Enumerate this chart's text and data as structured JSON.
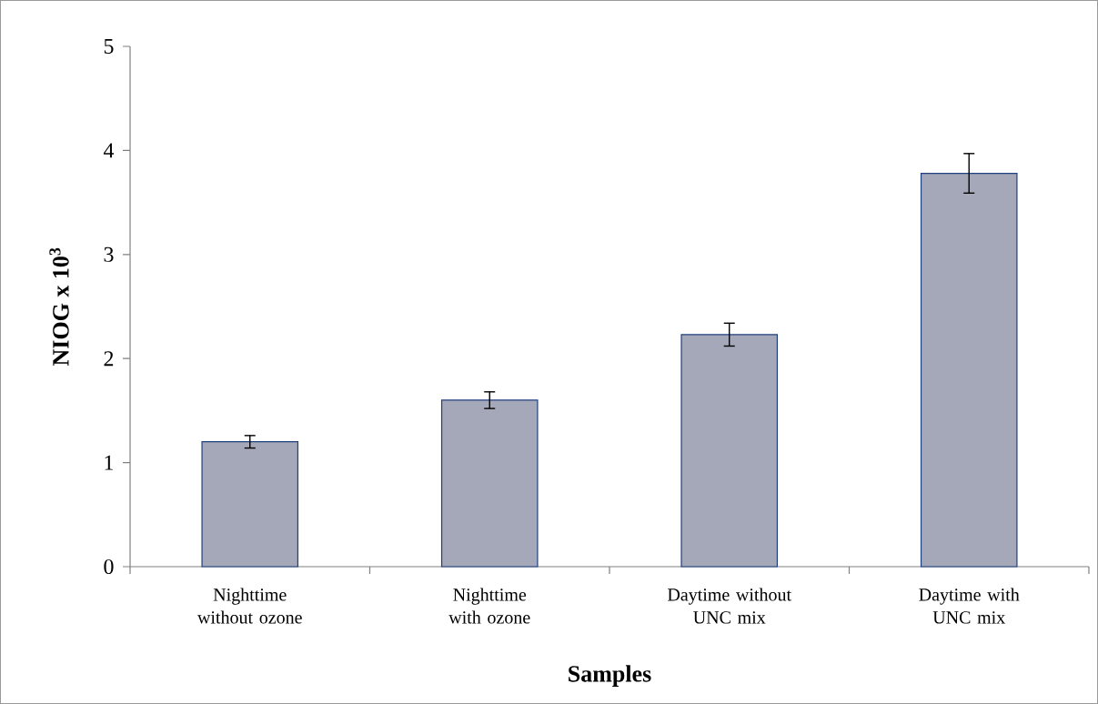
{
  "chart_data": {
    "type": "bar",
    "xlabel": "Samples",
    "ylabel": "NIOG x 10$^{3}$",
    "categories": [
      "Nighttime without ozone",
      "Nighttime with ozone",
      "Daytime without UNC mix",
      "Daytime with UNC mix"
    ],
    "values": [
      1.2,
      1.6,
      2.23,
      3.78
    ],
    "errors": [
      0.06,
      0.08,
      0.11,
      0.19
    ],
    "color": "#a4a8b8",
    "ylim": [
      0,
      5
    ],
    "yticks": [
      0,
      1,
      2,
      3,
      4,
      5
    ],
    "grid": false
  }
}
